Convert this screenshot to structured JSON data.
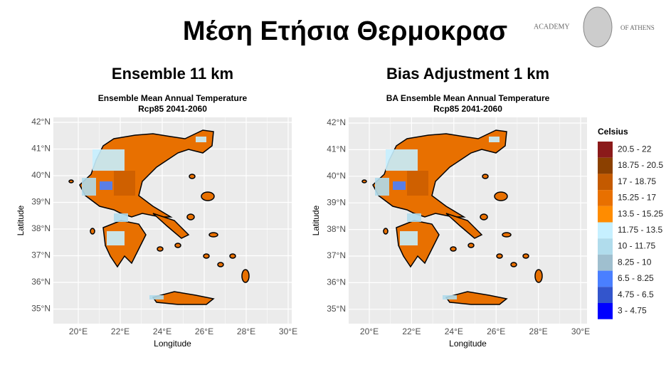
{
  "header": {
    "title": "Μέση Ετήσια Θερμοκρασ",
    "logo_left": "ACADEMY",
    "logo_right": "OF ATHENS"
  },
  "panels": [
    {
      "heading": "Ensemble 11 km",
      "title": "Ensemble Mean Annual Temperature",
      "subtitle": "Rcp85 2041-2060",
      "xlabel": "Longitude",
      "ylabel": "Latitude",
      "xticks": [
        "20°E",
        "22°E",
        "24°E",
        "26°E",
        "28°E",
        "30°E"
      ],
      "yticks": [
        "42°N",
        "41°N",
        "40°N",
        "39°N",
        "38°N",
        "37°N",
        "36°N",
        "35°N"
      ]
    },
    {
      "heading": "Bias Adjustment 1 km",
      "title": "BA Ensemble Mean Annual Temperature",
      "subtitle": "Rcp85 2041-2060",
      "xlabel": "Longitude",
      "ylabel": "Latitude",
      "xticks": [
        "20°E",
        "22°E",
        "24°E",
        "26°E",
        "28°E",
        "30°E"
      ],
      "yticks": [
        "42°N",
        "41°N",
        "40°N",
        "39°N",
        "38°N",
        "37°N",
        "36°N",
        "35°N"
      ]
    }
  ],
  "legend": {
    "title": "Celsius",
    "items": [
      {
        "label": "20.5 - 22",
        "color": "#8b1a1a"
      },
      {
        "label": "18.75 - 20.5",
        "color": "#8b4000"
      },
      {
        "label": "17 - 18.75",
        "color": "#c45a00"
      },
      {
        "label": "15.25 - 17",
        "color": "#e87000"
      },
      {
        "label": "13.5 - 15.25",
        "color": "#ff8c00"
      },
      {
        "label": "11.75 - 13.5",
        "color": "#c6f0ff"
      },
      {
        "label": "10 - 11.75",
        "color": "#b0dcec"
      },
      {
        "label": "8.25 - 10",
        "color": "#9fbfcf"
      },
      {
        "label": "6.5 - 8.25",
        "color": "#4a7fff"
      },
      {
        "label": "4.75 - 6.5",
        "color": "#3355cc"
      },
      {
        "label": "3 - 4.75",
        "color": "#0000ff"
      }
    ]
  }
}
